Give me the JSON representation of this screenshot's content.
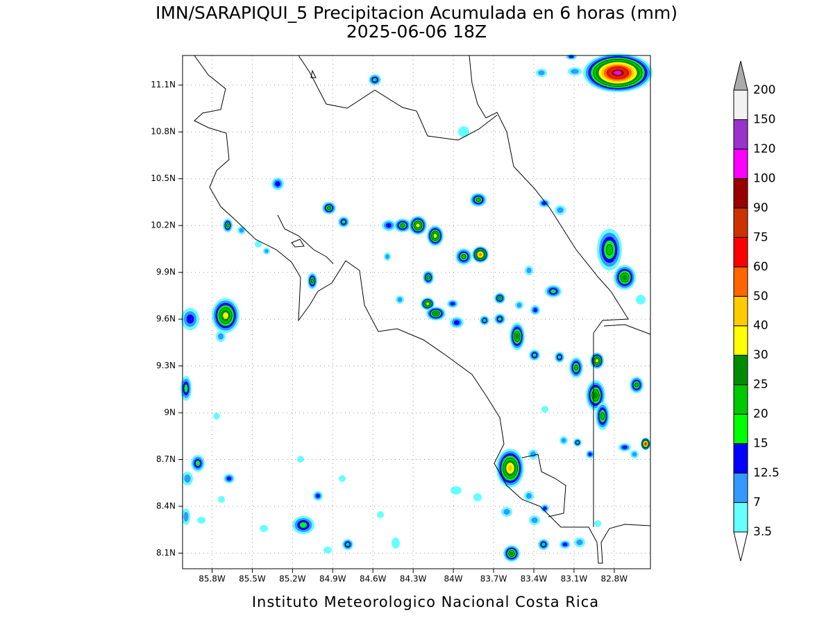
{
  "header": {
    "title": "IMN/SARAPIQUI_5 Precipitacion Acumulada en 6 horas (mm)",
    "subtitle": "2025-06-06 18Z"
  },
  "map": {
    "xlim": [
      -86.02,
      -82.53
    ],
    "ylim": [
      8.0,
      11.29
    ],
    "xticks": [
      {
        "value": -85.8,
        "label": "85.8W"
      },
      {
        "value": -85.5,
        "label": "85.5W"
      },
      {
        "value": -85.2,
        "label": "85.2W"
      },
      {
        "value": -84.9,
        "label": "84.9W"
      },
      {
        "value": -84.6,
        "label": "84.6W"
      },
      {
        "value": -84.3,
        "label": "84.3W"
      },
      {
        "value": -84.0,
        "label": "84W"
      },
      {
        "value": -83.7,
        "label": "83.7W"
      },
      {
        "value": -83.4,
        "label": "83.4W"
      },
      {
        "value": -83.1,
        "label": "83.1W"
      },
      {
        "value": -82.8,
        "label": "82.8W"
      }
    ],
    "yticks": [
      {
        "value": 11.1,
        "label": "11.1N"
      },
      {
        "value": 10.8,
        "label": "10.8N"
      },
      {
        "value": 10.5,
        "label": "10.5N"
      },
      {
        "value": 10.2,
        "label": "10.2N"
      },
      {
        "value": 9.9,
        "label": "9.9N"
      },
      {
        "value": 9.6,
        "label": "9.6N"
      },
      {
        "value": 9.3,
        "label": "9.3N"
      },
      {
        "value": 9.0,
        "label": "9N"
      },
      {
        "value": 8.7,
        "label": "8.7N"
      },
      {
        "value": 8.4,
        "label": "8.4N"
      },
      {
        "value": 8.1,
        "label": "8.1N"
      }
    ],
    "grid": true
  },
  "colorbar": {
    "levels": [
      3.5,
      7,
      12.5,
      15,
      20,
      25,
      30,
      40,
      50,
      60,
      75,
      90,
      100,
      120,
      150,
      200
    ],
    "colors": [
      "#66ffff",
      "#3399ff",
      "#0000ff",
      "#00ff00",
      "#00c800",
      "#008c00",
      "#ffff00",
      "#ffcc00",
      "#ff6600",
      "#ff0000",
      "#cc3300",
      "#990000",
      "#ff00ff",
      "#9933cc",
      "#f2f2f2"
    ],
    "under_color": "#ffffff",
    "over_color": "#aaaaaa"
  },
  "footer": "Instituto Meteorologico Nacional Costa Rica"
}
